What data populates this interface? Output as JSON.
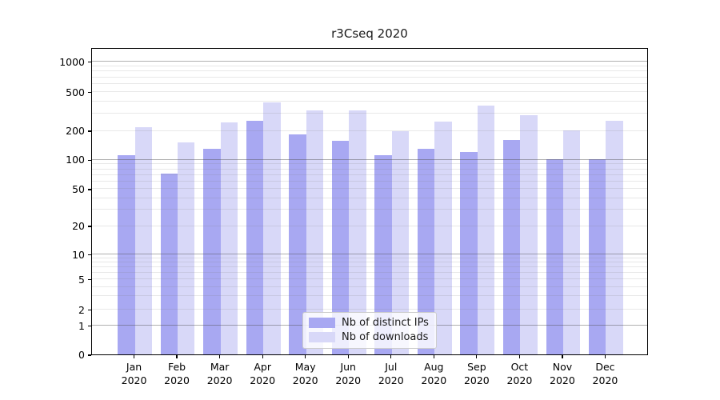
{
  "chart_data": {
    "type": "bar",
    "title": "r3Cseq 2020",
    "categories": [
      "Jan 2020",
      "Feb 2020",
      "Mar 2020",
      "Apr 2020",
      "May 2020",
      "Jun 2020",
      "Jul 2020",
      "Aug 2020",
      "Sep 2020",
      "Oct 2020",
      "Nov 2020",
      "Dec 2020"
    ],
    "series": [
      {
        "name": "Nb of distinct IPs",
        "color": "#a8a8f2",
        "values": [
          110,
          72,
          130,
          250,
          182,
          157,
          110,
          130,
          120,
          158,
          100,
          101
        ]
      },
      {
        "name": "Nb of downloads",
        "color": "#d8d8f8",
        "values": [
          215,
          150,
          240,
          390,
          320,
          320,
          195,
          245,
          360,
          285,
          200,
          250
        ]
      }
    ],
    "xlabel": "",
    "ylabel": "",
    "yscale": "asinh-log",
    "ylim": [
      0,
      1000
    ],
    "yticks": [
      0,
      1,
      2,
      5,
      10,
      20,
      50,
      100,
      200,
      500,
      1000
    ],
    "decade_gridlines": [
      1,
      10,
      100,
      1000
    ],
    "minor_gridlines": [
      3,
      4,
      6,
      7,
      8,
      9,
      30,
      40,
      60,
      70,
      80,
      90,
      300,
      400,
      600,
      700,
      800,
      900
    ],
    "scale_anchors": [
      [
        0,
        0.0
      ],
      [
        1,
        0.0945
      ],
      [
        2,
        0.1467
      ],
      [
        5,
        0.2454
      ],
      [
        10,
        0.3264
      ],
      [
        20,
        0.4191
      ],
      [
        50,
        0.5392
      ],
      [
        100,
        0.6345
      ],
      [
        200,
        0.729
      ],
      [
        500,
        0.8551
      ],
      [
        1000,
        0.9543
      ]
    ],
    "grid": true,
    "legend_position": "lower-center-inside"
  }
}
